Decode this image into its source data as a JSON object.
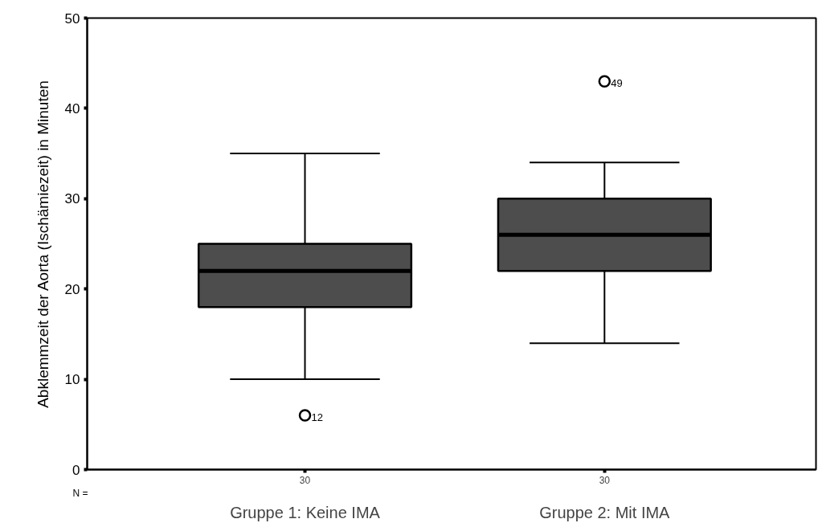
{
  "chart_data": {
    "type": "box",
    "ylabel": "Abklemmzeit der Aorta (Ischämiezeit) in Minuten",
    "categories": [
      "Gruppe 1: Keine IMA",
      "Gruppe 2: Mit IMA"
    ],
    "series": [
      {
        "color": "#4d4d4d",
        "boxes": [
          {
            "low": 10,
            "q1": 18,
            "median": 22,
            "q3": 25,
            "high": 35,
            "outliers": [
              6
            ]
          },
          {
            "low": 14,
            "q1": 22,
            "median": 26,
            "q3": 30,
            "high": 34,
            "outliers": [
              43
            ]
          }
        ]
      }
    ],
    "ylim": [
      0,
      50
    ],
    "yticks": [
      0,
      10,
      20,
      30,
      40,
      50
    ],
    "grid": false,
    "annotations": [
      "12",
      "49",
      "N =",
      "30",
      "30"
    ]
  }
}
